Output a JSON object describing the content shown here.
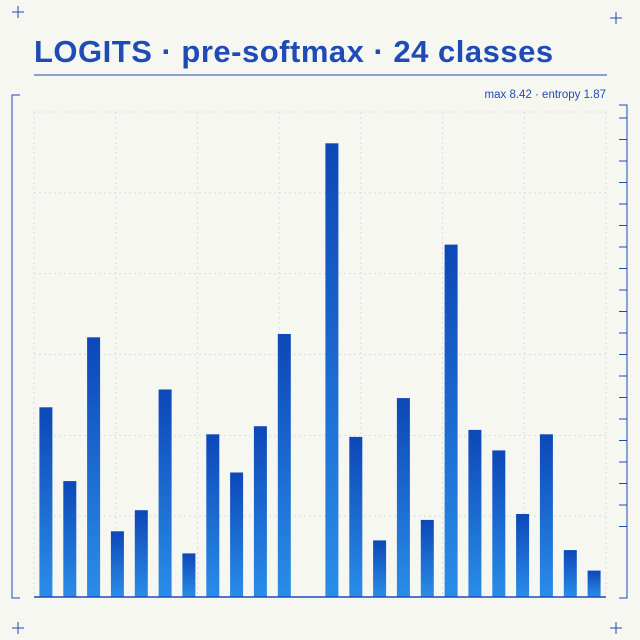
{
  "header": {
    "title": "LOGITS · pre-softmax · 24 classes",
    "stats": "max 8.42 · entropy 1.87"
  },
  "colors": {
    "accent": "#1e4bb5",
    "bar_top": "#0d47b8",
    "bar_bottom": "#2a8de8",
    "grid": "#d9dbe0",
    "background": "#f7f7f2"
  },
  "chart_data": {
    "type": "bar",
    "title": "LOGITS · pre-softmax · 24 classes",
    "subtitle": "max 8.42 · entropy 1.87",
    "categories": [
      "",
      "",
      "",
      "",
      "",
      "",
      "",
      "",
      "",
      "",
      "",
      "",
      "",
      "",
      "",
      "",
      "",
      "",
      "",
      "",
      "",
      "",
      "",
      ""
    ],
    "values": [
      3.52,
      2.15,
      4.82,
      1.22,
      1.61,
      3.85,
      0.81,
      3.02,
      2.31,
      3.17,
      4.88,
      0,
      8.42,
      2.97,
      1.05,
      3.69,
      1.43,
      6.54,
      3.1,
      2.72,
      1.54,
      3.02,
      0.87,
      0.49
    ],
    "ylim": [
      0,
      9
    ],
    "grid": true,
    "legend": "none"
  }
}
